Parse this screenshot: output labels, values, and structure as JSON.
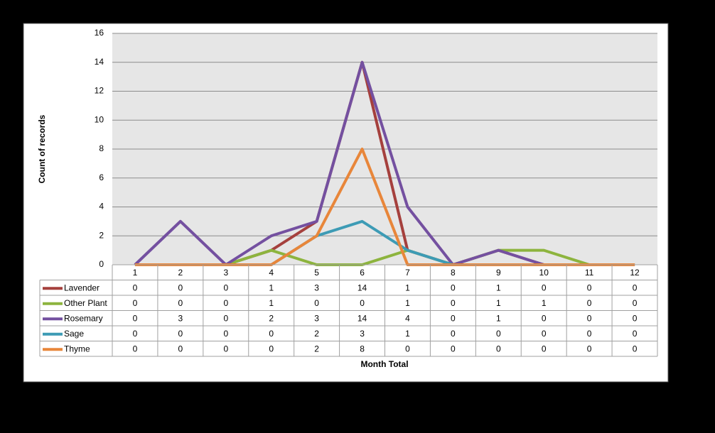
{
  "chart_data": {
    "type": "line",
    "y_label": "Count of records",
    "x_label": "Month Total",
    "categories": [
      "1",
      "2",
      "3",
      "4",
      "5",
      "6",
      "7",
      "8",
      "9",
      "10",
      "11",
      "12"
    ],
    "series": [
      {
        "name": "Lavender",
        "color": "#a5403d",
        "values": [
          0,
          0,
          0,
          1,
          3,
          14,
          1,
          0,
          1,
          0,
          0,
          0
        ]
      },
      {
        "name": "Other Plant",
        "color": "#8db43e",
        "values": [
          0,
          0,
          0,
          1,
          0,
          0,
          1,
          0,
          1,
          1,
          0,
          0
        ]
      },
      {
        "name": "Rosemary",
        "color": "#7450a0",
        "values": [
          0,
          3,
          0,
          2,
          3,
          14,
          4,
          0,
          1,
          0,
          0,
          0
        ]
      },
      {
        "name": "Sage",
        "color": "#3d9bb5",
        "values": [
          0,
          0,
          0,
          0,
          2,
          3,
          1,
          0,
          0,
          0,
          0,
          0
        ]
      },
      {
        "name": "Thyme",
        "color": "#e8863a",
        "values": [
          0,
          0,
          0,
          0,
          2,
          8,
          0,
          0,
          0,
          0,
          0,
          0
        ]
      }
    ],
    "ylim": [
      0,
      16
    ],
    "yticks": [
      0,
      2,
      4,
      6,
      8,
      10,
      12,
      14,
      16
    ],
    "grid": true,
    "data_table": true
  }
}
